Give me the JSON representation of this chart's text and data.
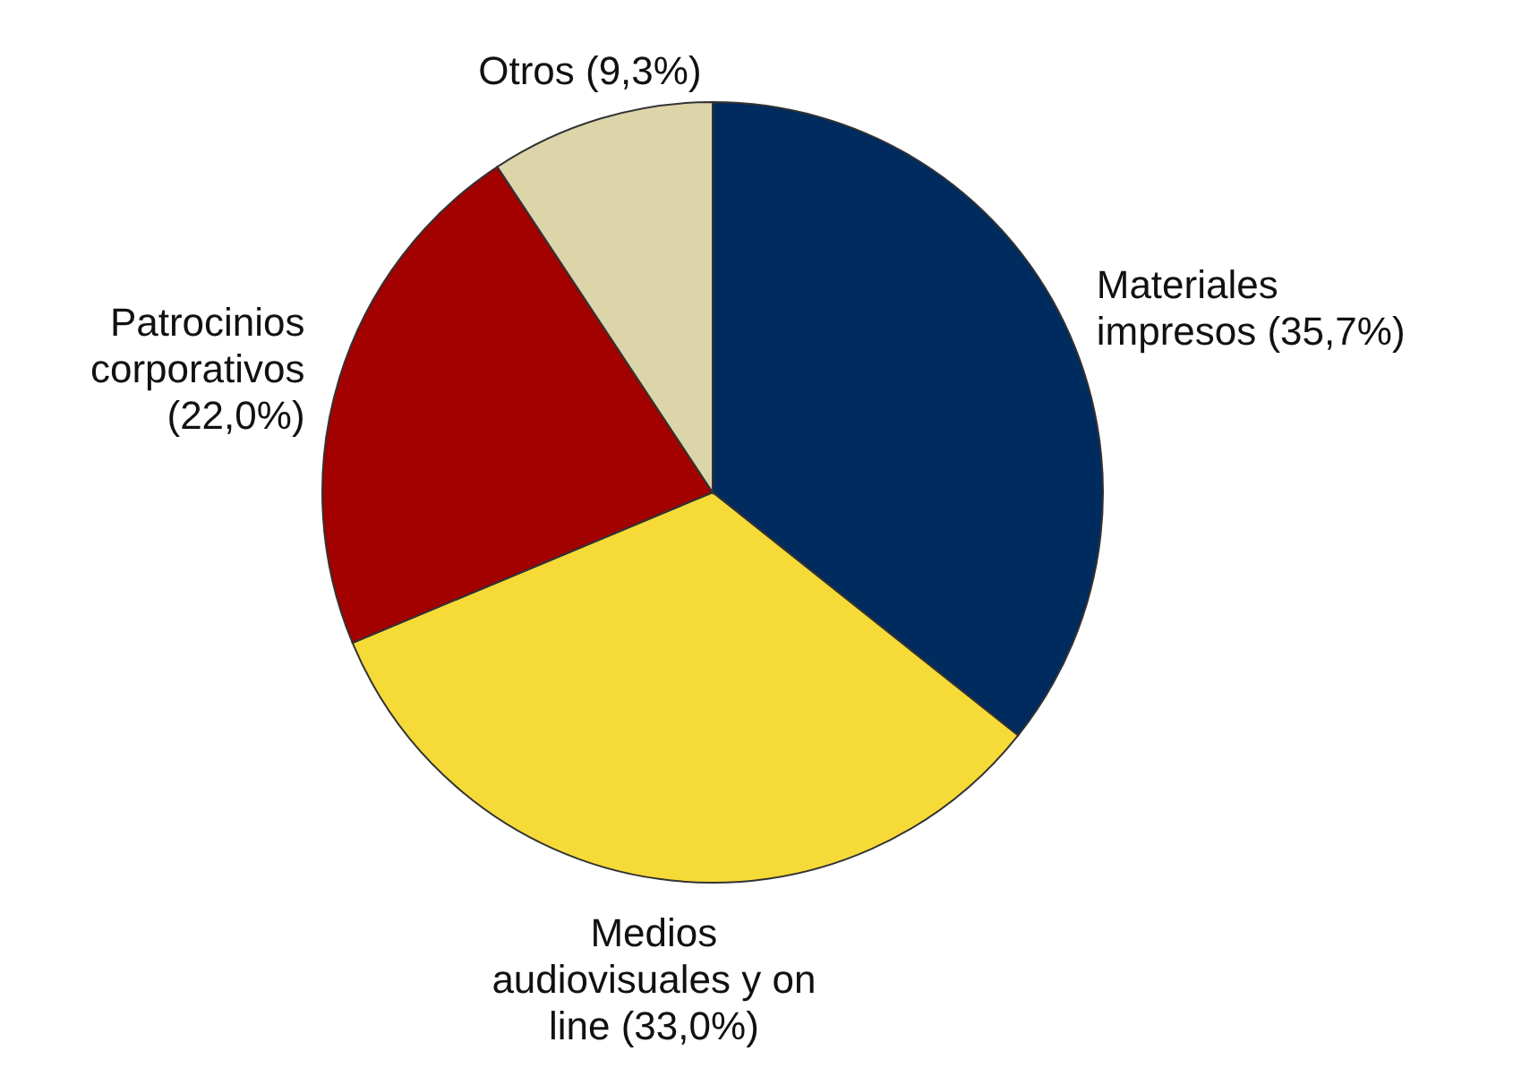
{
  "chart_data": {
    "type": "pie",
    "categories": [
      "Materiales impresos",
      "Medios audiovisuales y on line",
      "Patrocinios corporativos",
      "Otros"
    ],
    "values": [
      35.7,
      33.0,
      22.0,
      9.3
    ],
    "value_labels": [
      "(35,7%)",
      "(33,0%)",
      "(22,0%)",
      "(9,3%)"
    ],
    "colors": [
      "#002b5e",
      "#f6db38",
      "#a30000",
      "#ddd5aa"
    ],
    "legend": false
  }
}
